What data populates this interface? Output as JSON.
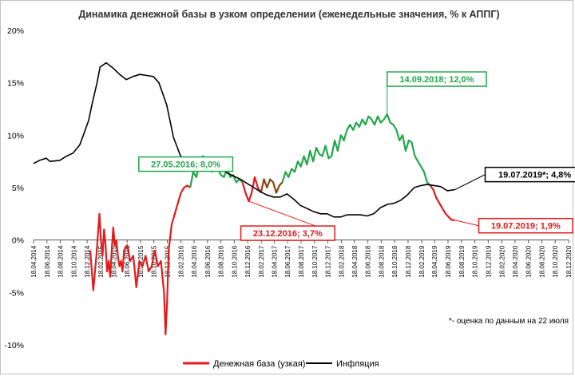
{
  "chart_data": {
    "type": "line",
    "title": "Динамика денежной базы в узком определении (еженедельные значения, % к АППГ)",
    "xlabel": "",
    "ylabel": "",
    "ylim": [
      -10,
      20
    ],
    "y_ticks": [
      "-10%",
      "-5%",
      "0%",
      "5%",
      "10%",
      "15%",
      "20%"
    ],
    "x_ticks": [
      "18.04.2014",
      "18.06.2014",
      "18.08.2014",
      "18.10.2014",
      "18.12.2014",
      "18.02.2015",
      "18.04.2015",
      "18.06.2015",
      "18.08.2015",
      "18.10.2015",
      "18.12.2015",
      "18.02.2016",
      "18.04.2016",
      "18.06.2016",
      "18.08.2016",
      "18.10.2016",
      "18.12.2016",
      "18.02.2017",
      "18.04.2017",
      "18.06.2017",
      "18.08.2017",
      "18.10.2017",
      "18.12.2017",
      "18.02.2018",
      "18.04.2018",
      "18.06.2018",
      "18.08.2018",
      "18.10.2018",
      "18.12.2018",
      "18.02.2019",
      "18.04.2019",
      "18.06.2019",
      "18.08.2019",
      "18.10.2019",
      "18.12.2019",
      "18.02.2020",
      "18.04.2020",
      "18.06.2020",
      "18.08.2020",
      "18.10.2020",
      "18.12.2020"
    ],
    "grid": false,
    "legend_position": "bottom",
    "colors": {
      "money_red": "#e31a1c",
      "money_green": "#22a74a",
      "money_brown": "#8b4513",
      "inflation": "#000000",
      "axis": "#555555"
    },
    "series": [
      {
        "name": "Денежная база (узкая)",
        "color": "#e31a1c",
        "points": [
          [
            "2015-01-01",
            -1.0
          ],
          [
            "2015-01-15",
            -4.8
          ],
          [
            "2015-01-29",
            -1.5
          ],
          [
            "2015-02-12",
            2.5
          ],
          [
            "2015-02-19",
            0.0
          ],
          [
            "2015-02-26",
            -1.5
          ],
          [
            "2015-03-05",
            1.0
          ],
          [
            "2015-03-12",
            -0.5
          ],
          [
            "2015-03-19",
            -3.0
          ],
          [
            "2015-03-26",
            -2.0
          ],
          [
            "2015-04-02",
            -3.5
          ],
          [
            "2015-04-09",
            -1.0
          ],
          [
            "2015-04-16",
            1.2
          ],
          [
            "2015-04-23",
            -0.5
          ],
          [
            "2015-04-30",
            0.0
          ],
          [
            "2015-05-07",
            -1.5
          ],
          [
            "2015-05-14",
            -2.5
          ],
          [
            "2015-05-21",
            -2.0
          ],
          [
            "2015-05-28",
            -3.0
          ],
          [
            "2015-06-04",
            -1.0
          ],
          [
            "2015-06-18",
            -0.5
          ],
          [
            "2015-07-02",
            -2.0
          ],
          [
            "2015-07-16",
            -1.5
          ],
          [
            "2015-07-30",
            -4.5
          ],
          [
            "2015-08-13",
            -2.0
          ],
          [
            "2015-08-27",
            -2.5
          ],
          [
            "2015-09-10",
            -1.5
          ],
          [
            "2015-09-24",
            -3.0
          ],
          [
            "2015-10-08",
            -2.5
          ],
          [
            "2015-10-22",
            -1.0
          ],
          [
            "2015-11-05",
            -2.5
          ],
          [
            "2015-11-19",
            -2.0
          ],
          [
            "2015-12-03",
            -5.0
          ],
          [
            "2015-12-10",
            -9.0
          ],
          [
            "2015-12-17",
            -6.0
          ],
          [
            "2015-12-24",
            -1.0
          ],
          [
            "2016-01-07",
            1.5
          ],
          [
            "2016-01-21",
            2.5
          ],
          [
            "2016-02-04",
            3.5
          ],
          [
            "2016-02-18",
            4.5
          ],
          [
            "2016-03-03",
            5.0
          ],
          [
            "2016-03-17",
            5.2
          ],
          [
            "2016-03-31",
            5.0
          ]
        ]
      },
      {
        "name": "Денежная база (узкая)",
        "color": "#22a74a",
        "points": [
          [
            "2016-03-31",
            5.0
          ],
          [
            "2016-04-14",
            6.5
          ],
          [
            "2016-04-28",
            6.0
          ],
          [
            "2016-05-12",
            7.2
          ],
          [
            "2016-05-27",
            8.0
          ],
          [
            "2016-06-09",
            7.0
          ],
          [
            "2016-06-23",
            7.5
          ],
          [
            "2016-07-07",
            6.5
          ],
          [
            "2016-07-21",
            7.8
          ],
          [
            "2016-08-04",
            6.8
          ],
          [
            "2016-08-18",
            6.2
          ],
          [
            "2016-09-01",
            6.0
          ],
          [
            "2016-09-15",
            6.8
          ],
          [
            "2016-09-29",
            6.0
          ],
          [
            "2016-10-13",
            6.2
          ],
          [
            "2016-10-27",
            5.5
          ],
          [
            "2016-11-10",
            5.8
          ],
          [
            "2016-11-24",
            5.5
          ]
        ]
      },
      {
        "name": "Денежная база (узкая)",
        "color": "#e31a1c",
        "points": [
          [
            "2016-11-24",
            5.5
          ],
          [
            "2016-12-08",
            4.5
          ],
          [
            "2016-12-23",
            3.7
          ],
          [
            "2017-01-05",
            4.5
          ],
          [
            "2017-01-19",
            6.0
          ],
          [
            "2017-02-02",
            5.0
          ],
          [
            "2017-02-16",
            4.5
          ]
        ]
      },
      {
        "name": "Денежная база (узкая)",
        "color": "#8b4513",
        "points": [
          [
            "2017-02-16",
            4.5
          ],
          [
            "2017-03-02",
            5.8
          ],
          [
            "2017-03-16",
            5.0
          ],
          [
            "2017-03-30",
            5.8
          ],
          [
            "2017-04-13",
            5.5
          ],
          [
            "2017-04-27",
            4.5
          ],
          [
            "2017-05-11",
            5.2
          ],
          [
            "2017-05-25",
            5.5
          ]
        ]
      },
      {
        "name": "Денежная база (узкая)",
        "color": "#22a74a",
        "points": [
          [
            "2017-05-25",
            5.5
          ],
          [
            "2017-06-08",
            6.5
          ],
          [
            "2017-06-22",
            6.0
          ],
          [
            "2017-07-06",
            6.8
          ],
          [
            "2017-07-20",
            6.5
          ],
          [
            "2017-08-03",
            7.5
          ],
          [
            "2017-08-17",
            7.0
          ],
          [
            "2017-08-31",
            8.0
          ],
          [
            "2017-09-14",
            7.2
          ],
          [
            "2017-09-28",
            8.5
          ],
          [
            "2017-10-12",
            7.5
          ],
          [
            "2017-10-26",
            8.8
          ],
          [
            "2017-11-09",
            8.2
          ],
          [
            "2017-11-23",
            8.0
          ],
          [
            "2017-12-07",
            9.0
          ],
          [
            "2017-12-21",
            7.8
          ],
          [
            "2018-01-04",
            8.0
          ],
          [
            "2018-01-18",
            9.5
          ],
          [
            "2018-02-01",
            8.5
          ],
          [
            "2018-02-15",
            10.0
          ],
          [
            "2018-03-01",
            9.5
          ],
          [
            "2018-03-15",
            10.5
          ],
          [
            "2018-03-29",
            11.0
          ],
          [
            "2018-04-12",
            10.5
          ],
          [
            "2018-04-26",
            11.2
          ],
          [
            "2018-05-10",
            10.8
          ],
          [
            "2018-05-24",
            11.5
          ],
          [
            "2018-06-07",
            11.0
          ],
          [
            "2018-06-21",
            11.8
          ],
          [
            "2018-07-05",
            11.5
          ],
          [
            "2018-07-19",
            11.0
          ],
          [
            "2018-08-02",
            11.8
          ],
          [
            "2018-08-16",
            11.2
          ],
          [
            "2018-08-30",
            11.5
          ],
          [
            "2018-09-14",
            12.0
          ],
          [
            "2018-09-28",
            11.2
          ],
          [
            "2018-10-12",
            11.0
          ],
          [
            "2018-10-26",
            10.5
          ],
          [
            "2018-11-09",
            9.5
          ],
          [
            "2018-11-23",
            10.0
          ],
          [
            "2018-12-07",
            8.5
          ],
          [
            "2018-12-21",
            9.5
          ],
          [
            "2019-01-04",
            9.3
          ],
          [
            "2019-01-18",
            8.0
          ],
          [
            "2019-02-01",
            7.5
          ],
          [
            "2019-02-15",
            7.0
          ],
          [
            "2019-03-01",
            6.5
          ],
          [
            "2019-03-15",
            5.5
          ],
          [
            "2019-03-29",
            5.2
          ]
        ]
      },
      {
        "name": "Денежная база (узкая)",
        "color": "#e31a1c",
        "points": [
          [
            "2019-03-29",
            5.2
          ],
          [
            "2019-04-12",
            4.8
          ],
          [
            "2019-04-26",
            4.0
          ],
          [
            "2019-05-10",
            3.5
          ],
          [
            "2019-05-24",
            3.0
          ],
          [
            "2019-06-07",
            2.5
          ],
          [
            "2019-06-21",
            2.2
          ],
          [
            "2019-07-05",
            1.9
          ],
          [
            "2019-07-19",
            1.9
          ]
        ]
      },
      {
        "name": "Инфляция",
        "color": "#000000",
        "points": [
          [
            "2014-04-18",
            7.3
          ],
          [
            "2014-05-15",
            7.6
          ],
          [
            "2014-06-15",
            7.8
          ],
          [
            "2014-07-01",
            7.5
          ],
          [
            "2014-08-15",
            7.6
          ],
          [
            "2014-09-15",
            8.0
          ],
          [
            "2014-10-15",
            8.3
          ],
          [
            "2014-11-15",
            9.1
          ],
          [
            "2014-12-01",
            10.0
          ],
          [
            "2014-12-25",
            11.4
          ],
          [
            "2015-01-10",
            13.0
          ],
          [
            "2015-02-01",
            15.0
          ],
          [
            "2015-02-15",
            16.5
          ],
          [
            "2015-03-15",
            16.9
          ],
          [
            "2015-04-15",
            16.4
          ],
          [
            "2015-05-15",
            15.8
          ],
          [
            "2015-06-15",
            15.3
          ],
          [
            "2015-07-15",
            15.6
          ],
          [
            "2015-08-15",
            15.8
          ],
          [
            "2015-09-15",
            15.7
          ],
          [
            "2015-10-15",
            15.6
          ],
          [
            "2015-11-10",
            15.0
          ],
          [
            "2015-12-15",
            12.9
          ],
          [
            "2016-01-15",
            9.8
          ],
          [
            "2016-02-15",
            8.1
          ],
          [
            "2016-03-15",
            7.3
          ],
          [
            "2016-04-15",
            7.3
          ],
          [
            "2016-05-15",
            7.3
          ],
          [
            "2016-06-15",
            7.5
          ],
          [
            "2016-07-15",
            7.2
          ],
          [
            "2016-08-15",
            6.9
          ],
          [
            "2016-09-15",
            6.4
          ],
          [
            "2016-10-15",
            6.1
          ],
          [
            "2016-11-15",
            5.8
          ],
          [
            "2016-12-15",
            5.4
          ],
          [
            "2017-01-15",
            5.0
          ],
          [
            "2017-02-15",
            4.6
          ],
          [
            "2017-03-15",
            4.3
          ],
          [
            "2017-04-15",
            4.1
          ],
          [
            "2017-05-15",
            4.1
          ],
          [
            "2017-06-15",
            4.4
          ],
          [
            "2017-07-15",
            3.9
          ],
          [
            "2017-08-15",
            3.3
          ],
          [
            "2017-09-15",
            3.0
          ],
          [
            "2017-10-15",
            2.7
          ],
          [
            "2017-11-15",
            2.5
          ],
          [
            "2017-12-15",
            2.5
          ],
          [
            "2018-01-15",
            2.2
          ],
          [
            "2018-02-15",
            2.2
          ],
          [
            "2018-03-15",
            2.4
          ],
          [
            "2018-04-15",
            2.4
          ],
          [
            "2018-05-15",
            2.4
          ],
          [
            "2018-06-15",
            2.3
          ],
          [
            "2018-07-15",
            2.5
          ],
          [
            "2018-08-15",
            3.1
          ],
          [
            "2018-09-15",
            3.4
          ],
          [
            "2018-10-15",
            3.5
          ],
          [
            "2018-11-15",
            3.8
          ],
          [
            "2018-12-15",
            4.3
          ],
          [
            "2019-01-15",
            5.0
          ],
          [
            "2019-02-15",
            5.2
          ],
          [
            "2019-03-15",
            5.3
          ],
          [
            "2019-04-15",
            5.2
          ],
          [
            "2019-05-15",
            5.1
          ],
          [
            "2019-06-15",
            4.7
          ],
          [
            "2019-07-19",
            4.8
          ]
        ]
      }
    ],
    "annotations": [
      {
        "label": "27.05.2016; 8,0%",
        "date": "2016-05-27",
        "value": 8.0,
        "color": "#22a74a"
      },
      {
        "label": "14.09.2018; 12,0%",
        "date": "2018-09-14",
        "value": 12.0,
        "color": "#22a74a"
      },
      {
        "label": "23.12.2016; 3,7%",
        "date": "2016-12-23",
        "value": 3.7,
        "color": "#e31a1c"
      },
      {
        "label": "19.07.2019; 1,9%",
        "date": "2019-07-19",
        "value": 1.9,
        "color": "#e31a1c"
      },
      {
        "label": "19.07.2019*; 4,8%",
        "date": "2019-07-19",
        "value": 4.8,
        "color": "#000000"
      }
    ],
    "footnote": "*- оценка по данным на 22 июля",
    "legend": [
      {
        "label": "Денежная база (узкая)",
        "color": "#e31a1c"
      },
      {
        "label": "Инфляция",
        "color": "#000000"
      }
    ]
  }
}
